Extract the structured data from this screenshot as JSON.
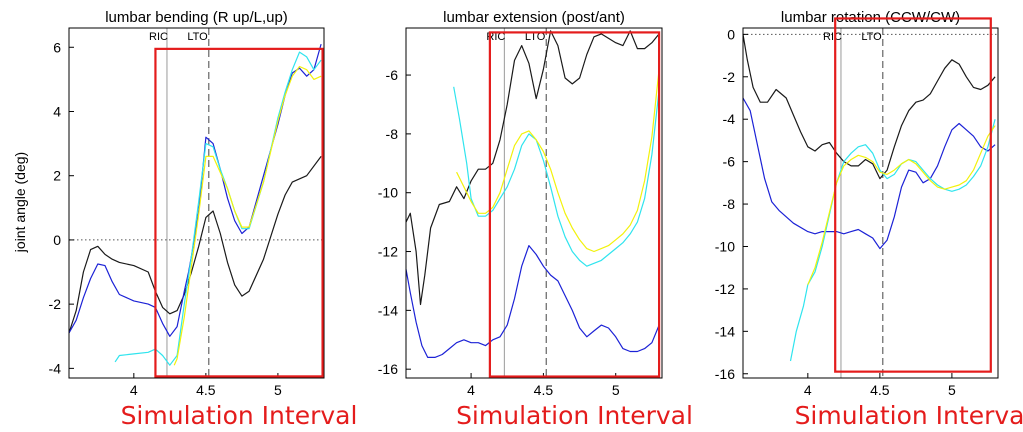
{
  "ylabel": "joint angle (deg)",
  "colors": {
    "black": "#1a1a1a",
    "blue": "#1c22d6",
    "cyan": "#2fe4ee",
    "yellow": "#f2f20c",
    "green": "#6ee03a",
    "box": "#e41c1c",
    "event": "#9a9a9a"
  },
  "chart_data": [
    {
      "type": "line",
      "title": "lumbar bending (R up/L,up)",
      "xlim": [
        3.55,
        5.32
      ],
      "ylim": [
        -4.3,
        6.6
      ],
      "xticks": [
        4,
        4.5,
        5
      ],
      "xtick_labels": [
        "4",
        "4.5",
        "5"
      ],
      "yticks": [
        -4,
        -2,
        0,
        2,
        4,
        6
      ],
      "ytick_labels": [
        "-4",
        "-2",
        "0",
        "2",
        "4",
        "6"
      ],
      "zero_line": true,
      "events": [
        {
          "label": "RIC",
          "x": 4.23,
          "style": "solid"
        },
        {
          "label": "LTO",
          "x": 4.52,
          "style": "dashed"
        }
      ],
      "interval": {
        "label": "Simulation Interval",
        "x": [
          4.15,
          5.31
        ],
        "y": [
          -4.25,
          5.95
        ]
      },
      "series": [
        {
          "color": "black",
          "x": [
            3.55,
            3.6,
            3.65,
            3.7,
            3.75,
            3.8,
            3.85,
            3.9,
            4.0,
            4.1,
            4.15,
            4.2,
            4.25,
            4.3,
            4.35,
            4.4,
            4.45,
            4.5,
            4.55,
            4.6,
            4.65,
            4.7,
            4.75,
            4.8,
            4.9,
            5.0,
            5.05,
            5.1,
            5.2,
            5.3
          ],
          "y": [
            -2.9,
            -2.2,
            -1.0,
            -0.3,
            -0.2,
            -0.45,
            -0.6,
            -0.7,
            -0.8,
            -1.0,
            -1.6,
            -2.1,
            -2.3,
            -2.2,
            -1.7,
            -1.0,
            -0.2,
            0.7,
            0.9,
            0.2,
            -0.7,
            -1.4,
            -1.75,
            -1.6,
            -0.6,
            0.8,
            1.4,
            1.8,
            2.0,
            2.6
          ]
        },
        {
          "color": "blue",
          "x": [
            3.55,
            3.6,
            3.65,
            3.7,
            3.75,
            3.8,
            3.85,
            3.9,
            4.0,
            4.1,
            4.15,
            4.2,
            4.25,
            4.3,
            4.35,
            4.38,
            4.4,
            4.45,
            4.5,
            4.55,
            4.6,
            4.65,
            4.7,
            4.75,
            4.8,
            4.85,
            4.9,
            5.0,
            5.05,
            5.1,
            5.15,
            5.2,
            5.25,
            5.3
          ],
          "y": [
            -2.9,
            -2.5,
            -1.8,
            -1.2,
            -0.75,
            -0.8,
            -1.3,
            -1.7,
            -1.9,
            -2.0,
            -2.1,
            -2.6,
            -3.0,
            -2.7,
            -1.6,
            -1.0,
            -0.5,
            0.9,
            3.2,
            3.0,
            2.2,
            1.3,
            0.6,
            0.2,
            0.4,
            1.2,
            2.0,
            3.6,
            4.5,
            5.2,
            5.35,
            5.1,
            5.3,
            6.1
          ]
        },
        {
          "color": "cyan",
          "x": [
            3.87,
            3.9,
            4.0,
            4.1,
            4.15,
            4.2,
            4.25,
            4.3,
            4.35,
            4.4,
            4.45,
            4.5,
            4.55,
            4.6,
            4.65,
            4.7,
            4.75,
            4.8,
            4.9,
            5.0,
            5.05,
            5.1,
            5.15,
            5.2,
            5.25,
            5.3
          ],
          "y": [
            -3.8,
            -3.6,
            -3.55,
            -3.5,
            -3.4,
            -3.6,
            -3.9,
            -3.6,
            -2.0,
            -0.5,
            1.2,
            3.0,
            2.9,
            2.2,
            1.6,
            0.9,
            0.35,
            0.35,
            1.8,
            3.8,
            4.6,
            5.3,
            5.85,
            5.7,
            5.3,
            5.6
          ]
        },
        {
          "color": "yellow",
          "x": [
            4.28,
            4.3,
            4.35,
            4.4,
            4.45,
            4.5,
            4.55,
            4.6,
            4.65,
            4.7,
            4.75,
            4.8,
            4.9,
            5.0,
            5.05,
            5.1,
            5.15,
            5.2,
            5.25,
            5.3
          ],
          "y": [
            -3.9,
            -3.7,
            -2.4,
            -0.8,
            0.8,
            2.6,
            2.6,
            2.1,
            1.6,
            0.9,
            0.4,
            0.4,
            1.8,
            3.7,
            4.5,
            5.1,
            5.4,
            5.3,
            5.0,
            5.1
          ]
        }
      ]
    },
    {
      "type": "line",
      "title": "lumbar extension (post/ant)",
      "xlim": [
        3.55,
        5.32
      ],
      "ylim": [
        -16.3,
        -4.4
      ],
      "xticks": [
        4,
        4.5,
        5
      ],
      "xtick_labels": [
        "4",
        "4.5",
        "5"
      ],
      "yticks": [
        -16,
        -14,
        -12,
        -10,
        -8,
        -6
      ],
      "ytick_labels": [
        "-16",
        "-14",
        "-12",
        "-10",
        "-8",
        "-6"
      ],
      "zero_line": false,
      "events": [
        {
          "label": "RIC",
          "x": 4.23,
          "style": "solid"
        },
        {
          "label": "LTO",
          "x": 4.52,
          "style": "dashed"
        }
      ],
      "interval": {
        "label": "Simulation Interval",
        "x": [
          4.13,
          5.3
        ],
        "y": [
          -16.25,
          -4.55
        ]
      },
      "series": [
        {
          "color": "black",
          "x": [
            3.55,
            3.58,
            3.62,
            3.65,
            3.68,
            3.72,
            3.78,
            3.85,
            3.9,
            3.95,
            4.0,
            4.05,
            4.1,
            4.15,
            4.2,
            4.25,
            4.3,
            4.35,
            4.4,
            4.45,
            4.5,
            4.55,
            4.6,
            4.65,
            4.7,
            4.75,
            4.8,
            4.85,
            4.9,
            5.0,
            5.05,
            5.1,
            5.15,
            5.2,
            5.25,
            5.3
          ],
          "y": [
            -11.0,
            -10.7,
            -12.0,
            -13.8,
            -12.8,
            -11.2,
            -10.4,
            -10.3,
            -9.8,
            -10.2,
            -9.6,
            -9.2,
            -9.2,
            -9.0,
            -8.2,
            -7.0,
            -5.5,
            -5.0,
            -5.6,
            -6.8,
            -5.8,
            -4.5,
            -5.0,
            -6.1,
            -6.3,
            -6.1,
            -5.3,
            -4.7,
            -4.6,
            -4.9,
            -5.0,
            -4.5,
            -5.1,
            -5.1,
            -4.9,
            -4.6
          ]
        },
        {
          "color": "blue",
          "x": [
            3.55,
            3.58,
            3.62,
            3.66,
            3.7,
            3.75,
            3.8,
            3.85,
            3.9,
            3.95,
            4.0,
            4.05,
            4.1,
            4.15,
            4.2,
            4.25,
            4.3,
            4.35,
            4.4,
            4.45,
            4.5,
            4.55,
            4.6,
            4.65,
            4.7,
            4.75,
            4.8,
            4.85,
            4.9,
            4.95,
            5.0,
            5.05,
            5.1,
            5.15,
            5.2,
            5.25,
            5.3
          ],
          "y": [
            -12.6,
            -13.4,
            -14.4,
            -15.2,
            -15.6,
            -15.6,
            -15.5,
            -15.3,
            -15.1,
            -15.0,
            -15.1,
            -15.1,
            -15.2,
            -15.0,
            -14.9,
            -14.5,
            -13.6,
            -12.5,
            -11.8,
            -12.1,
            -12.5,
            -12.8,
            -13.0,
            -13.5,
            -14.0,
            -14.6,
            -14.9,
            -14.7,
            -14.5,
            -14.6,
            -14.9,
            -15.3,
            -15.4,
            -15.4,
            -15.3,
            -15.1,
            -14.5
          ]
        },
        {
          "color": "cyan",
          "x": [
            3.88,
            3.92,
            3.97,
            4.0,
            4.05,
            4.1,
            4.15,
            4.2,
            4.25,
            4.3,
            4.35,
            4.4,
            4.45,
            4.5,
            4.55,
            4.6,
            4.65,
            4.7,
            4.75,
            4.8,
            4.85,
            4.9,
            4.95,
            5.0,
            5.05,
            5.1,
            5.15,
            5.2,
            5.25,
            5.3
          ],
          "y": [
            -6.4,
            -7.5,
            -9.0,
            -10.2,
            -10.8,
            -10.8,
            -10.6,
            -10.2,
            -9.8,
            -9.2,
            -8.4,
            -8.0,
            -8.2,
            -8.9,
            -9.8,
            -10.8,
            -11.5,
            -12.0,
            -12.3,
            -12.5,
            -12.4,
            -12.3,
            -12.1,
            -11.9,
            -11.7,
            -11.4,
            -11.0,
            -10.2,
            -8.7,
            -6.5
          ]
        },
        {
          "color": "yellow",
          "x": [
            3.9,
            3.95,
            4.0,
            4.05,
            4.1,
            4.15,
            4.2,
            4.25,
            4.3,
            4.35,
            4.4,
            4.45,
            4.5,
            4.55,
            4.6,
            4.65,
            4.7,
            4.75,
            4.8,
            4.85,
            4.9,
            4.95,
            5.0,
            5.05,
            5.1,
            5.15,
            5.2,
            5.25,
            5.3
          ],
          "y": [
            -9.3,
            -9.8,
            -10.3,
            -10.7,
            -10.7,
            -10.5,
            -10.0,
            -9.2,
            -8.4,
            -8.0,
            -7.9,
            -8.2,
            -8.6,
            -9.2,
            -10.0,
            -10.7,
            -11.2,
            -11.6,
            -11.9,
            -12.0,
            -11.9,
            -11.8,
            -11.6,
            -11.4,
            -11.1,
            -10.6,
            -9.6,
            -8.1,
            -5.8
          ]
        }
      ]
    },
    {
      "type": "line",
      "title": "lumbar rotation (CCW/CW)",
      "xlim": [
        3.55,
        5.32
      ],
      "ylim": [
        -16.2,
        0.3
      ],
      "xticks": [
        4,
        4.5,
        5
      ],
      "xtick_labels": [
        "4",
        "4.5",
        "5"
      ],
      "yticks": [
        -16,
        -14,
        -12,
        -10,
        -8,
        -6,
        -4,
        -2,
        0
      ],
      "ytick_labels": [
        "-16",
        "-14",
        "-12",
        "-10",
        "-8",
        "-6",
        "-4",
        "-2",
        "0"
      ],
      "zero_line": true,
      "events": [
        {
          "label": "RIC",
          "x": 4.23,
          "style": "solid"
        },
        {
          "label": "LTO",
          "x": 4.52,
          "style": "dashed"
        }
      ],
      "interval": {
        "label": "Simulation Interval",
        "x": [
          4.19,
          5.27
        ],
        "y": [
          -15.9,
          0.75
        ]
      },
      "series": [
        {
          "color": "black",
          "x": [
            3.55,
            3.58,
            3.62,
            3.67,
            3.72,
            3.78,
            3.85,
            3.9,
            3.95,
            4.0,
            4.05,
            4.1,
            4.15,
            4.2,
            4.25,
            4.3,
            4.35,
            4.4,
            4.45,
            4.5,
            4.55,
            4.6,
            4.65,
            4.7,
            4.75,
            4.8,
            4.85,
            4.9,
            4.95,
            5.0,
            5.05,
            5.1,
            5.15,
            5.2,
            5.25,
            5.3
          ],
          "y": [
            0.0,
            -1.2,
            -2.5,
            -3.2,
            -3.2,
            -2.6,
            -3.0,
            -3.8,
            -4.6,
            -5.3,
            -5.5,
            -5.2,
            -5.1,
            -5.6,
            -6.0,
            -6.2,
            -6.2,
            -5.9,
            -6.1,
            -6.8,
            -6.4,
            -5.3,
            -4.3,
            -3.6,
            -3.2,
            -3.1,
            -2.8,
            -2.2,
            -1.6,
            -1.2,
            -1.4,
            -2.0,
            -2.5,
            -2.6,
            -2.4,
            -2.0
          ]
        },
        {
          "color": "blue",
          "x": [
            3.55,
            3.6,
            3.65,
            3.7,
            3.75,
            3.8,
            3.9,
            4.0,
            4.05,
            4.1,
            4.15,
            4.2,
            4.25,
            4.3,
            4.35,
            4.4,
            4.45,
            4.5,
            4.55,
            4.6,
            4.65,
            4.7,
            4.75,
            4.8,
            4.85,
            4.9,
            4.95,
            5.0,
            5.05,
            5.1,
            5.15,
            5.2,
            5.25,
            5.3
          ],
          "y": [
            -3.0,
            -3.6,
            -5.2,
            -6.8,
            -7.9,
            -8.3,
            -8.9,
            -9.3,
            -9.4,
            -9.3,
            -9.3,
            -9.3,
            -9.4,
            -9.3,
            -9.2,
            -9.4,
            -9.6,
            -10.1,
            -9.7,
            -8.6,
            -7.2,
            -6.4,
            -6.5,
            -7.0,
            -6.8,
            -6.2,
            -5.3,
            -4.5,
            -4.2,
            -4.5,
            -4.8,
            -5.3,
            -5.5,
            -5.2
          ]
        },
        {
          "color": "cyan",
          "x": [
            3.88,
            3.92,
            3.97,
            4.0,
            4.05,
            4.1,
            4.15,
            4.2,
            4.25,
            4.3,
            4.35,
            4.4,
            4.45,
            4.5,
            4.55,
            4.6,
            4.65,
            4.7,
            4.75,
            4.8,
            4.85,
            4.9,
            4.95,
            5.0,
            5.05,
            5.1,
            5.15,
            5.2,
            5.25,
            5.3
          ],
          "y": [
            -15.4,
            -14.0,
            -12.8,
            -11.8,
            -11.2,
            -10.0,
            -8.5,
            -7.0,
            -6.0,
            -5.6,
            -5.3,
            -5.2,
            -5.6,
            -6.4,
            -6.8,
            -6.6,
            -6.1,
            -5.9,
            -6.0,
            -6.4,
            -6.8,
            -7.1,
            -7.3,
            -7.4,
            -7.3,
            -7.1,
            -6.7,
            -6.2,
            -5.3,
            -4.0
          ]
        },
        {
          "color": "yellow",
          "x": [
            4.0,
            4.05,
            4.1,
            4.15,
            4.2,
            4.25,
            4.3,
            4.35,
            4.4,
            4.45,
            4.5,
            4.55,
            4.6,
            4.65,
            4.7,
            4.75,
            4.8,
            4.85,
            4.9,
            4.95,
            5.0,
            5.05,
            5.1,
            5.15,
            5.2,
            5.25,
            5.3
          ],
          "y": [
            -11.8,
            -11.0,
            -9.8,
            -8.4,
            -7.0,
            -6.2,
            -5.9,
            -5.7,
            -5.8,
            -6.0,
            -6.5,
            -6.6,
            -6.4,
            -6.1,
            -5.9,
            -6.1,
            -6.5,
            -6.9,
            -7.2,
            -7.3,
            -7.2,
            -7.1,
            -6.9,
            -6.4,
            -5.6,
            -4.8,
            -4.3
          ]
        }
      ]
    }
  ]
}
